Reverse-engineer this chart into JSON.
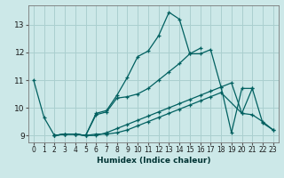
{
  "xlabel": "Humidex (Indice chaleur)",
  "background_color": "#cce8e8",
  "grid_color": "#aacfcf",
  "line_color": "#006060",
  "xlim": [
    -0.5,
    23.5
  ],
  "ylim": [
    8.75,
    13.7
  ],
  "xticks": [
    0,
    1,
    2,
    3,
    4,
    5,
    6,
    7,
    8,
    9,
    10,
    11,
    12,
    13,
    14,
    15,
    16,
    17,
    18,
    19,
    20,
    21,
    22,
    23
  ],
  "yticks": [
    9,
    10,
    11,
    12,
    13
  ],
  "curves": [
    {
      "x": [
        0,
        1,
        2,
        3,
        4,
        5,
        6,
        7,
        8,
        9,
        10,
        11,
        12,
        13,
        14,
        15,
        16,
        17,
        18,
        19,
        20,
        21,
        22,
        23
      ],
      "y": [
        11.0,
        9.65,
        9.0,
        9.05,
        9.05,
        9.0,
        9.8,
        9.9,
        10.45,
        11.1,
        11.85,
        12.05,
        12.6,
        13.45,
        13.2,
        11.95,
        11.95,
        12.1,
        10.75,
        9.1,
        10.7,
        10.7,
        9.45,
        9.2
      ]
    },
    {
      "x": [
        2,
        3,
        4,
        5,
        6,
        7,
        8,
        9,
        10,
        11,
        12,
        13,
        14,
        15,
        16,
        17,
        18,
        19,
        20,
        21,
        22,
        23
      ],
      "y": [
        9.0,
        9.05,
        9.05,
        9.0,
        9.0,
        9.1,
        9.25,
        9.4,
        9.55,
        9.7,
        9.85,
        10.0,
        10.15,
        10.3,
        10.45,
        10.6,
        10.75,
        10.9,
        9.8,
        9.75,
        9.5,
        9.2
      ]
    },
    {
      "x": [
        2,
        3,
        4,
        5,
        6,
        7,
        8,
        9,
        10,
        11,
        12,
        13,
        14,
        15,
        16
      ],
      "y": [
        9.0,
        9.05,
        9.05,
        9.0,
        9.75,
        9.85,
        10.35,
        10.4,
        10.5,
        10.7,
        11.0,
        11.3,
        11.6,
        11.95,
        12.15
      ]
    },
    {
      "x": [
        2,
        3,
        4,
        5,
        6,
        7,
        8,
        9,
        10,
        11,
        12,
        13,
        14,
        15,
        16,
        17,
        18,
        20,
        21
      ],
      "y": [
        9.0,
        9.05,
        9.05,
        9.0,
        9.05,
        9.05,
        9.1,
        9.2,
        9.35,
        9.5,
        9.65,
        9.8,
        9.95,
        10.1,
        10.25,
        10.4,
        10.55,
        9.8,
        10.7
      ]
    }
  ]
}
